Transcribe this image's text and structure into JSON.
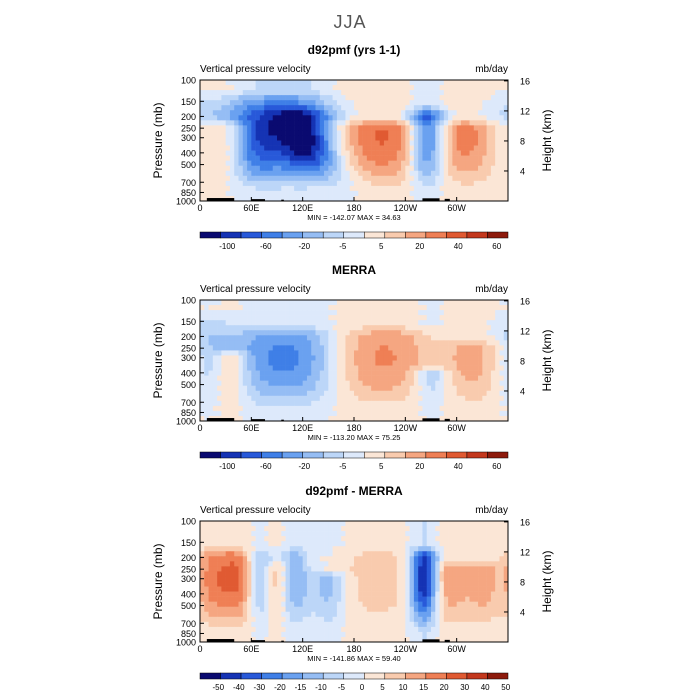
{
  "figure_title": "JJA",
  "colors": {
    "panel_scale": [
      "#0a0a70",
      "#1533b4",
      "#2859d9",
      "#3f7fe7",
      "#6aa1f0",
      "#95bdf4",
      "#bcd6f8",
      "#dde9fb",
      "#fbe6d6",
      "#f9cbae",
      "#f5a681",
      "#ef7f55",
      "#e05a32",
      "#c3381d",
      "#8d1a0c"
    ],
    "diff_scale": [
      "#0a0a70",
      "#1533b4",
      "#2859d9",
      "#3f7fe7",
      "#6aa1f0",
      "#95bdf4",
      "#bcd6f8",
      "#dde9fb",
      "#fbe6d6",
      "#f9cbae",
      "#f5a681",
      "#ef7f55",
      "#e05a32",
      "#c3381d",
      "#8d1a0c"
    ]
  },
  "chart_data": [
    {
      "type": "heatmap",
      "title": "d92pmf (yrs 1-1)",
      "left_label": "Vertical pressure velocity",
      "right_label": "mb/day",
      "ylabel": "Pressure (mb)",
      "ylabel_right": "Height (km)",
      "x_ticks": [
        "0",
        "60E",
        "120E",
        "180",
        "120W",
        "60W"
      ],
      "x_tick_lon": [
        0,
        60,
        120,
        180,
        240,
        300
      ],
      "xlim": [
        0,
        360
      ],
      "y_ticks": [
        "100",
        "150",
        "200",
        "250",
        "300",
        "400",
        "500",
        "700",
        "850",
        "1000"
      ],
      "y_tick_p": [
        100,
        150,
        200,
        250,
        300,
        400,
        500,
        700,
        850,
        1000
      ],
      "ylim": [
        100,
        1000
      ],
      "height_ticks": [
        "4",
        "8",
        "12",
        "16"
      ],
      "height_tick_km": [
        4,
        8,
        12,
        16
      ],
      "min_label": "MIN = -142.07",
      "max_label": "MAX = 34.63",
      "colorbar_labels": [
        "-100",
        "-60",
        "-20",
        "-5",
        "5",
        "20",
        "40",
        "60"
      ],
      "colorbar_levels": [
        -120,
        -100,
        -80,
        -60,
        -40,
        -20,
        -10,
        -5,
        0,
        5,
        10,
        20,
        30,
        40,
        50,
        60
      ],
      "field": [
        {
          "lon": 45,
          "width": 45,
          "strength": -1.1,
          "top": 150,
          "tilt": 0
        },
        {
          "lon": 75,
          "width": 30,
          "strength": -0.9,
          "top": 150,
          "tilt": 0
        },
        {
          "lon": 125,
          "width": 30,
          "strength": -1.3,
          "top": 150,
          "tilt": 0
        },
        {
          "lon": 140,
          "width": 25,
          "strength": -1.2,
          "top": 200,
          "tilt": 40
        },
        {
          "lon": 265,
          "width": 15,
          "strength": -2.2,
          "top": 200,
          "tilt": 0
        },
        {
          "lon": 30,
          "width": 18,
          "strength": 1.3,
          "top": 250,
          "tilt": 0
        },
        {
          "lon": 95,
          "width": 15,
          "strength": 0.3,
          "top": 300,
          "tilt": 0
        },
        {
          "lon": 210,
          "width": 55,
          "strength": 1.3,
          "top": 250,
          "tilt": 0
        },
        {
          "lon": 320,
          "width": 30,
          "strength": 1.0,
          "top": 250,
          "tilt": 0
        }
      ]
    },
    {
      "type": "heatmap",
      "title": "MERRA",
      "left_label": "Vertical pressure velocity",
      "right_label": "mb/day",
      "ylabel": "Pressure (mb)",
      "ylabel_right": "Height (km)",
      "x_ticks": [
        "0",
        "60E",
        "120E",
        "180",
        "120W",
        "60W"
      ],
      "x_tick_lon": [
        0,
        60,
        120,
        180,
        240,
        300
      ],
      "xlim": [
        0,
        360
      ],
      "y_ticks": [
        "100",
        "150",
        "200",
        "250",
        "300",
        "400",
        "500",
        "700",
        "850",
        "1000"
      ],
      "y_tick_p": [
        100,
        150,
        200,
        250,
        300,
        400,
        500,
        700,
        850,
        1000
      ],
      "ylim": [
        100,
        1000
      ],
      "height_ticks": [
        "4",
        "8",
        "12",
        "16"
      ],
      "height_tick_km": [
        4,
        8,
        12,
        16
      ],
      "min_label": "MIN = -113.20",
      "max_label": "MAX = 75.25",
      "colorbar_labels": [
        "-100",
        "-60",
        "-20",
        "-5",
        "5",
        "20",
        "40",
        "60"
      ],
      "colorbar_levels": [
        -120,
        -100,
        -80,
        -60,
        -40,
        -20,
        -10,
        -5,
        0,
        5,
        10,
        20,
        30,
        40,
        50,
        60
      ],
      "field": [
        {
          "lon": 20,
          "width": 25,
          "strength": -0.8,
          "top": 150,
          "tilt": 0
        },
        {
          "lon": 80,
          "width": 30,
          "strength": -1.0,
          "top": 200,
          "tilt": 0
        },
        {
          "lon": 130,
          "width": 30,
          "strength": -1.1,
          "top": 200,
          "tilt": 0
        },
        {
          "lon": 270,
          "width": 15,
          "strength": -1.1,
          "top": 400,
          "tilt": 0
        },
        {
          "lon": 35,
          "width": 15,
          "strength": 1.2,
          "top": 300,
          "tilt": 0
        },
        {
          "lon": 210,
          "width": 55,
          "strength": 1.0,
          "top": 200,
          "tilt": 0
        },
        {
          "lon": 325,
          "width": 25,
          "strength": 0.7,
          "top": 250,
          "tilt": 0
        }
      ]
    },
    {
      "type": "heatmap",
      "title": "d92pmf - MERRA",
      "left_label": "Vertical pressure velocity",
      "right_label": "mb/day",
      "ylabel": "Pressure (mb)",
      "ylabel_right": "Height (km)",
      "x_ticks": [
        "0",
        "60E",
        "120E",
        "180",
        "120W",
        "60W"
      ],
      "x_tick_lon": [
        0,
        60,
        120,
        180,
        240,
        300
      ],
      "xlim": [
        0,
        360
      ],
      "y_ticks": [
        "100",
        "150",
        "200",
        "250",
        "300",
        "400",
        "500",
        "700",
        "850",
        "1000"
      ],
      "y_tick_p": [
        100,
        150,
        200,
        250,
        300,
        400,
        500,
        700,
        850,
        1000
      ],
      "ylim": [
        100,
        1000
      ],
      "height_ticks": [
        "4",
        "8",
        "12",
        "16"
      ],
      "height_tick_km": [
        4,
        8,
        12,
        16
      ],
      "min_label": "MIN = -141.86",
      "max_label": "MAX = 59.40",
      "colorbar_labels": [
        "-50",
        "-40",
        "-30",
        "-20",
        "-15",
        "-10",
        "-5",
        "0",
        "5",
        "10",
        "15",
        "20",
        "30",
        "40",
        "50"
      ],
      "colorbar_levels": [
        -60,
        -50,
        -40,
        -30,
        -20,
        -15,
        -10,
        -5,
        0,
        5,
        10,
        15,
        20,
        30,
        40,
        50,
        60
      ],
      "field": [
        {
          "lon": 15,
          "width": 15,
          "strength": 1.0,
          "top": 200,
          "tilt": 0
        },
        {
          "lon": 45,
          "width": 15,
          "strength": 1.2,
          "top": 200,
          "tilt": 0
        },
        {
          "lon": 70,
          "width": 12,
          "strength": -0.9,
          "top": 200,
          "tilt": 0
        },
        {
          "lon": 90,
          "width": 10,
          "strength": 0.8,
          "top": 250,
          "tilt": 0
        },
        {
          "lon": 110,
          "width": 12,
          "strength": -1.0,
          "top": 200,
          "tilt": 0
        },
        {
          "lon": 150,
          "width": 15,
          "strength": -0.9,
          "top": 300,
          "tilt": 0
        },
        {
          "lon": 210,
          "width": 40,
          "strength": 0.5,
          "top": 200,
          "tilt": 0
        },
        {
          "lon": 262,
          "width": 12,
          "strength": -2.5,
          "top": 200,
          "tilt": 0
        },
        {
          "lon": 290,
          "width": 15,
          "strength": 0.9,
          "top": 250,
          "tilt": 0
        },
        {
          "lon": 330,
          "width": 15,
          "strength": 0.8,
          "top": 250,
          "tilt": 0
        }
      ]
    }
  ]
}
